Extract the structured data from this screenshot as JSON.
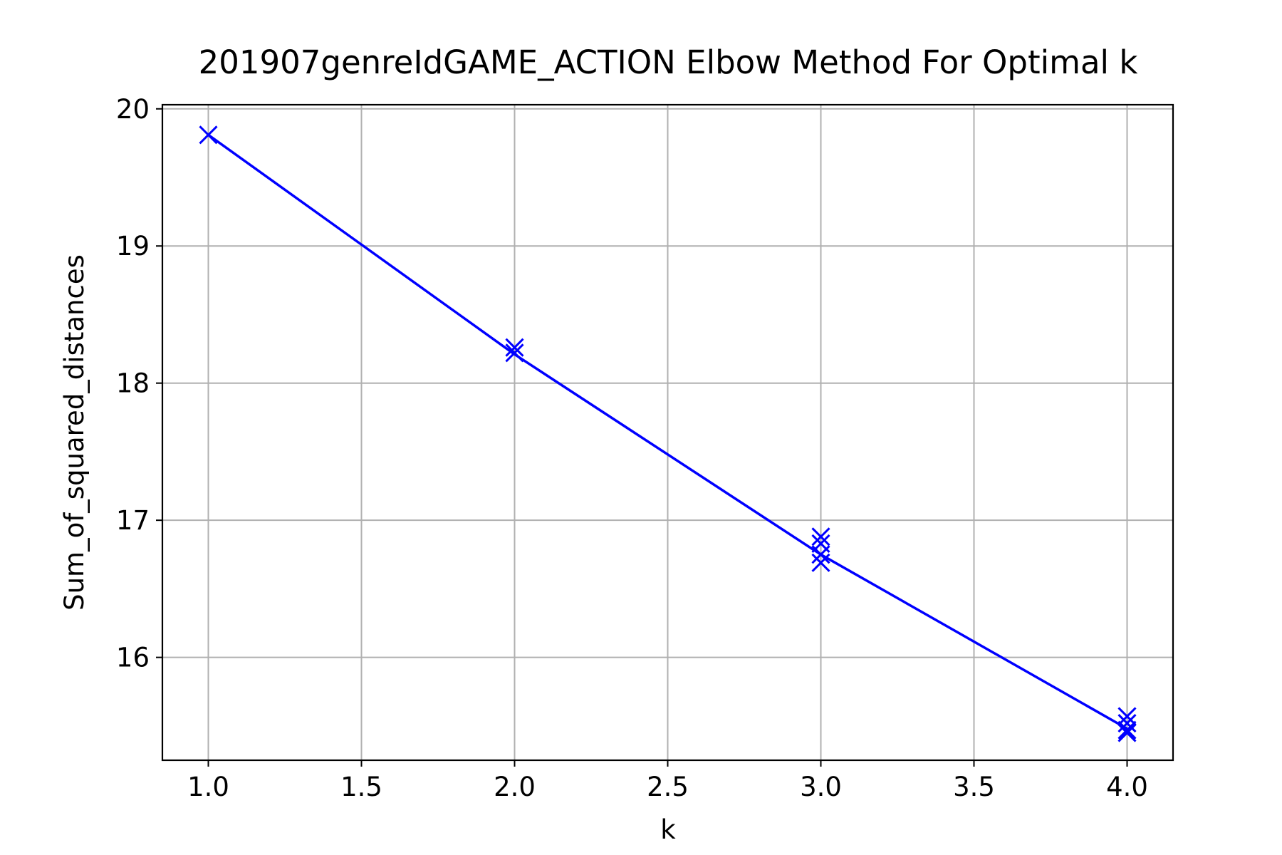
{
  "chart_data": {
    "type": "line",
    "title": "201907genreIdGAME_ACTION Elbow Method For Optimal k",
    "xlabel": "k",
    "ylabel": "Sum_of_squared_distances",
    "xlim": [
      0.85,
      4.15
    ],
    "ylim": [
      15.25,
      20.03
    ],
    "xticks": [
      1.0,
      1.5,
      2.0,
      2.5,
      3.0,
      3.5,
      4.0
    ],
    "xtick_labels": [
      "1.0",
      "1.5",
      "2.0",
      "2.5",
      "3.0",
      "3.5",
      "4.0"
    ],
    "yticks": [
      16,
      17,
      18,
      19,
      20
    ],
    "ytick_labels": [
      "16",
      "17",
      "18",
      "19",
      "20"
    ],
    "grid": true,
    "series": [
      {
        "color": "#0000ff",
        "marker": "x",
        "points": [
          {
            "x": 1,
            "y": 19.81
          },
          {
            "x": 2,
            "y": 18.26
          },
          {
            "x": 2,
            "y": 18.22
          },
          {
            "x": 3,
            "y": 16.88
          },
          {
            "x": 3,
            "y": 16.83
          },
          {
            "x": 3,
            "y": 16.75
          },
          {
            "x": 3,
            "y": 16.69
          },
          {
            "x": 4,
            "y": 15.57
          },
          {
            "x": 4,
            "y": 15.52
          },
          {
            "x": 4,
            "y": 15.47
          },
          {
            "x": 4,
            "y": 15.45
          }
        ],
        "line": [
          {
            "x": 1,
            "y": 19.81
          },
          {
            "x": 2,
            "y": 18.21
          },
          {
            "x": 3,
            "y": 16.75
          },
          {
            "x": 4,
            "y": 15.48
          }
        ]
      }
    ]
  }
}
